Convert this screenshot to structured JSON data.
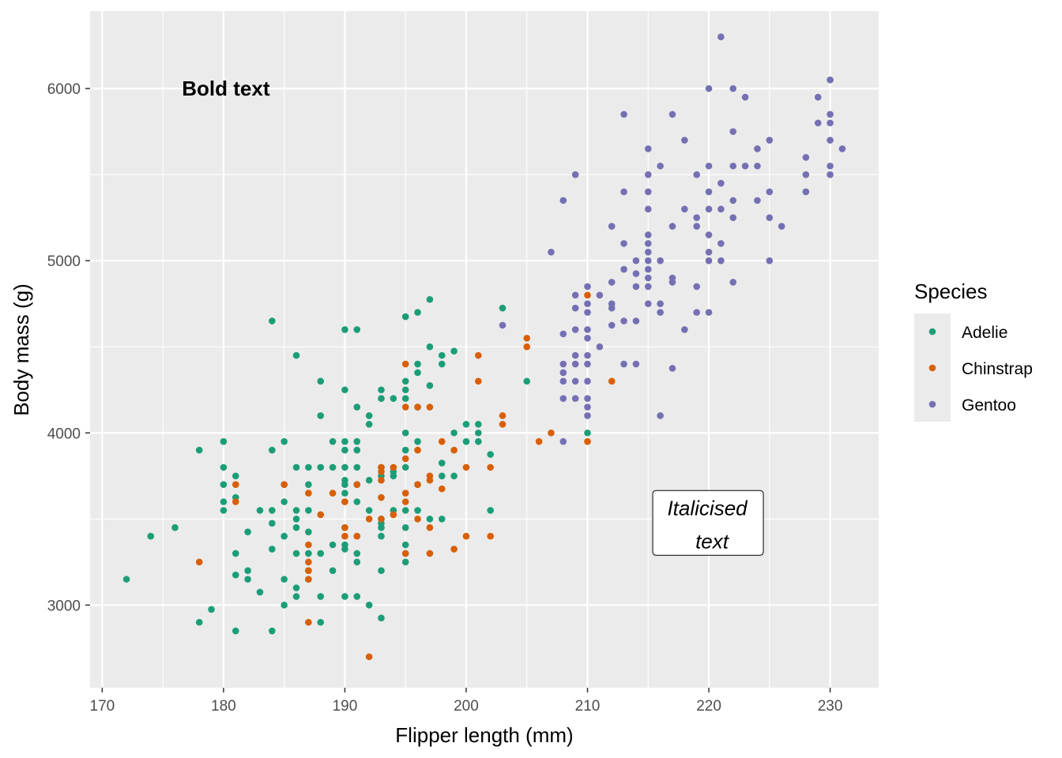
{
  "chart_data": {
    "type": "scatter",
    "xlabel": "Flipper length (mm)",
    "ylabel": "Body mass (g)",
    "xlim": [
      169,
      234
    ],
    "ylim": [
      2520,
      6450
    ],
    "x_ticks": [
      170,
      180,
      190,
      200,
      210,
      220,
      230
    ],
    "y_ticks": [
      3000,
      4000,
      5000,
      6000
    ],
    "grid": true,
    "legend": {
      "title": "Species",
      "position": "right"
    },
    "annotations": [
      {
        "text": "Bold text",
        "style": "bold",
        "x": 180,
        "y": 6000
      },
      {
        "text": "Italicised\ntext",
        "style": "italic-label",
        "x": 220,
        "y": 3500
      }
    ],
    "series": [
      {
        "name": "Adelie",
        "color": "#1B9E77",
        "points": [
          [
            172,
            3150
          ],
          [
            174,
            3400
          ],
          [
            176,
            3450
          ],
          [
            178,
            3900
          ],
          [
            178,
            2900
          ],
          [
            179,
            2975
          ],
          [
            180,
            3950
          ],
          [
            180,
            3800
          ],
          [
            180,
            3700
          ],
          [
            180,
            3600
          ],
          [
            180,
            3550
          ],
          [
            181,
            3750
          ],
          [
            181,
            3625
          ],
          [
            181,
            3300
          ],
          [
            181,
            3175
          ],
          [
            181,
            2850
          ],
          [
            182,
            3425
          ],
          [
            182,
            3200
          ],
          [
            182,
            3150
          ],
          [
            183,
            3550
          ],
          [
            183,
            3075
          ],
          [
            184,
            4650
          ],
          [
            184,
            3900
          ],
          [
            184,
            3550
          ],
          [
            184,
            3475
          ],
          [
            184,
            3325
          ],
          [
            184,
            2850
          ],
          [
            185,
            3950
          ],
          [
            185,
            3700
          ],
          [
            185,
            3600
          ],
          [
            185,
            3400
          ],
          [
            185,
            3150
          ],
          [
            185,
            3000
          ],
          [
            186,
            4450
          ],
          [
            186,
            3800
          ],
          [
            186,
            3550
          ],
          [
            186,
            3500
          ],
          [
            186,
            3450
          ],
          [
            186,
            3300
          ],
          [
            186,
            3100
          ],
          [
            186,
            3050
          ],
          [
            187,
            3800
          ],
          [
            187,
            3700
          ],
          [
            187,
            3550
          ],
          [
            187,
            3425
          ],
          [
            187,
            3300
          ],
          [
            187,
            3200
          ],
          [
            187,
            3150
          ],
          [
            188,
            4300
          ],
          [
            188,
            4100
          ],
          [
            188,
            3800
          ],
          [
            188,
            3300
          ],
          [
            188,
            3050
          ],
          [
            188,
            2900
          ],
          [
            189,
            3950
          ],
          [
            189,
            3800
          ],
          [
            189,
            3350
          ],
          [
            189,
            3200
          ],
          [
            190,
            4600
          ],
          [
            190,
            4250
          ],
          [
            190,
            3950
          ],
          [
            190,
            3900
          ],
          [
            190,
            3800
          ],
          [
            190,
            3725
          ],
          [
            190,
            3700
          ],
          [
            190,
            3650
          ],
          [
            190,
            3600
          ],
          [
            190,
            3450
          ],
          [
            190,
            3350
          ],
          [
            190,
            3325
          ],
          [
            190,
            3050
          ],
          [
            191,
            4600
          ],
          [
            191,
            4150
          ],
          [
            191,
            3950
          ],
          [
            191,
            3900
          ],
          [
            191,
            3800
          ],
          [
            191,
            3700
          ],
          [
            191,
            3600
          ],
          [
            191,
            3300
          ],
          [
            191,
            3250
          ],
          [
            191,
            3050
          ],
          [
            192,
            4100
          ],
          [
            192,
            4050
          ],
          [
            192,
            3725
          ],
          [
            192,
            3550
          ],
          [
            192,
            3000
          ],
          [
            193,
            4250
          ],
          [
            193,
            4200
          ],
          [
            193,
            3800
          ],
          [
            193,
            3750
          ],
          [
            193,
            3500
          ],
          [
            193,
            3475
          ],
          [
            193,
            3450
          ],
          [
            193,
            3400
          ],
          [
            193,
            3200
          ],
          [
            193,
            2925
          ],
          [
            194,
            4200
          ],
          [
            194,
            3775
          ],
          [
            194,
            3750
          ],
          [
            194,
            3550
          ],
          [
            195,
            4675
          ],
          [
            195,
            4300
          ],
          [
            195,
            4250
          ],
          [
            195,
            4200
          ],
          [
            195,
            4000
          ],
          [
            195,
            3900
          ],
          [
            195,
            3800
          ],
          [
            195,
            3550
          ],
          [
            195,
            3450
          ],
          [
            195,
            3350
          ],
          [
            195,
            3300
          ],
          [
            195,
            3250
          ],
          [
            196,
            4700
          ],
          [
            196,
            4400
          ],
          [
            196,
            4350
          ],
          [
            196,
            4150
          ],
          [
            196,
            3950
          ],
          [
            196,
            3700
          ],
          [
            196,
            3550
          ],
          [
            197,
            4775
          ],
          [
            197,
            4500
          ],
          [
            197,
            4275
          ],
          [
            197,
            3500
          ],
          [
            198,
            4450
          ],
          [
            198,
            4400
          ],
          [
            198,
            3825
          ],
          [
            198,
            3750
          ],
          [
            198,
            3500
          ],
          [
            199,
            4475
          ],
          [
            199,
            4000
          ],
          [
            199,
            3750
          ],
          [
            200,
            4050
          ],
          [
            200,
            3950
          ],
          [
            201,
            4050
          ],
          [
            201,
            4000
          ],
          [
            201,
            3950
          ],
          [
            202,
            3875
          ],
          [
            202,
            3550
          ],
          [
            203,
            4725
          ],
          [
            205,
            4300
          ],
          [
            210,
            4000
          ]
        ]
      },
      {
        "name": "Chinstrap",
        "color": "#D95F02",
        "points": [
          [
            178,
            3250
          ],
          [
            181,
            3700
          ],
          [
            181,
            3600
          ],
          [
            185,
            3700
          ],
          [
            187,
            3650
          ],
          [
            187,
            3350
          ],
          [
            187,
            3250
          ],
          [
            187,
            3200
          ],
          [
            187,
            3150
          ],
          [
            187,
            2900
          ],
          [
            188,
            3525
          ],
          [
            189,
            3650
          ],
          [
            190,
            3450
          ],
          [
            190,
            3400
          ],
          [
            190,
            3600
          ],
          [
            191,
            3700
          ],
          [
            191,
            3400
          ],
          [
            192,
            3500
          ],
          [
            192,
            2700
          ],
          [
            193,
            3800
          ],
          [
            193,
            3775
          ],
          [
            193,
            3725
          ],
          [
            193,
            3625
          ],
          [
            193,
            3500
          ],
          [
            194,
            3800
          ],
          [
            194,
            3525
          ],
          [
            195,
            4400
          ],
          [
            195,
            4150
          ],
          [
            195,
            3850
          ],
          [
            195,
            3650
          ],
          [
            195,
            3600
          ],
          [
            195,
            3300
          ],
          [
            196,
            4150
          ],
          [
            196,
            3900
          ],
          [
            196,
            3700
          ],
          [
            196,
            3500
          ],
          [
            197,
            4150
          ],
          [
            197,
            3750
          ],
          [
            197,
            3725
          ],
          [
            197,
            3450
          ],
          [
            197,
            3300
          ],
          [
            198,
            3950
          ],
          [
            198,
            3675
          ],
          [
            199,
            3900
          ],
          [
            199,
            3325
          ],
          [
            200,
            3800
          ],
          [
            200,
            3400
          ],
          [
            201,
            4450
          ],
          [
            201,
            4300
          ],
          [
            202,
            3800
          ],
          [
            202,
            3400
          ],
          [
            203,
            4100
          ],
          [
            203,
            4050
          ],
          [
            205,
            4550
          ],
          [
            205,
            4500
          ],
          [
            206,
            3950
          ],
          [
            207,
            4000
          ],
          [
            210,
            4800
          ],
          [
            210,
            3950
          ],
          [
            212,
            4300
          ]
        ]
      },
      {
        "name": "Gentoo",
        "color": "#7570B3",
        "points": [
          [
            203,
            4625
          ],
          [
            207,
            5050
          ],
          [
            208,
            5350
          ],
          [
            208,
            4575
          ],
          [
            208,
            4400
          ],
          [
            208,
            4350
          ],
          [
            208,
            4300
          ],
          [
            208,
            4200
          ],
          [
            208,
            3950
          ],
          [
            209,
            5500
          ],
          [
            209,
            4800
          ],
          [
            209,
            4725
          ],
          [
            209,
            4600
          ],
          [
            209,
            4450
          ],
          [
            209,
            4400
          ],
          [
            209,
            4300
          ],
          [
            209,
            4200
          ],
          [
            210,
            4850
          ],
          [
            210,
            4750
          ],
          [
            210,
            4700
          ],
          [
            210,
            4600
          ],
          [
            210,
            4550
          ],
          [
            210,
            4450
          ],
          [
            210,
            4400
          ],
          [
            210,
            4300
          ],
          [
            210,
            4200
          ],
          [
            210,
            4150
          ],
          [
            210,
            4100
          ],
          [
            211,
            4800
          ],
          [
            211,
            4500
          ],
          [
            212,
            5200
          ],
          [
            212,
            4875
          ],
          [
            212,
            4750
          ],
          [
            212,
            4725
          ],
          [
            212,
            4625
          ],
          [
            213,
            5850
          ],
          [
            213,
            5400
          ],
          [
            213,
            5100
          ],
          [
            213,
            4950
          ],
          [
            213,
            4650
          ],
          [
            213,
            4400
          ],
          [
            214,
            5000
          ],
          [
            214,
            4925
          ],
          [
            214,
            4850
          ],
          [
            214,
            4650
          ],
          [
            214,
            4400
          ],
          [
            215,
            5650
          ],
          [
            215,
            5500
          ],
          [
            215,
            5400
          ],
          [
            215,
            5300
          ],
          [
            215,
            5150
          ],
          [
            215,
            5100
          ],
          [
            215,
            5050
          ],
          [
            215,
            5000
          ],
          [
            215,
            4950
          ],
          [
            215,
            4900
          ],
          [
            215,
            4850
          ],
          [
            215,
            4750
          ],
          [
            216,
            5550
          ],
          [
            216,
            5000
          ],
          [
            216,
            4750
          ],
          [
            216,
            4700
          ],
          [
            216,
            4100
          ],
          [
            217,
            5850
          ],
          [
            217,
            5200
          ],
          [
            217,
            4900
          ],
          [
            217,
            4875
          ],
          [
            217,
            4375
          ],
          [
            218,
            5700
          ],
          [
            218,
            5300
          ],
          [
            218,
            4600
          ],
          [
            219,
            5500
          ],
          [
            219,
            5250
          ],
          [
            219,
            5200
          ],
          [
            219,
            4850
          ],
          [
            219,
            4700
          ],
          [
            220,
            6000
          ],
          [
            220,
            5550
          ],
          [
            220,
            5400
          ],
          [
            220,
            5300
          ],
          [
            220,
            5150
          ],
          [
            220,
            5050
          ],
          [
            220,
            5000
          ],
          [
            220,
            4700
          ],
          [
            221,
            6300
          ],
          [
            221,
            5450
          ],
          [
            221,
            5300
          ],
          [
            221,
            5100
          ],
          [
            221,
            5000
          ],
          [
            222,
            6000
          ],
          [
            222,
            5750
          ],
          [
            222,
            5550
          ],
          [
            222,
            5350
          ],
          [
            222,
            5250
          ],
          [
            222,
            4875
          ],
          [
            223,
            5950
          ],
          [
            223,
            5550
          ],
          [
            224,
            5650
          ],
          [
            224,
            5550
          ],
          [
            224,
            5350
          ],
          [
            225,
            5700
          ],
          [
            225,
            5400
          ],
          [
            225,
            5250
          ],
          [
            225,
            5000
          ],
          [
            226,
            5200
          ],
          [
            228,
            5600
          ],
          [
            228,
            5500
          ],
          [
            228,
            5400
          ],
          [
            229,
            5950
          ],
          [
            229,
            5800
          ],
          [
            230,
            6050
          ],
          [
            230,
            5850
          ],
          [
            230,
            5800
          ],
          [
            230,
            5700
          ],
          [
            230,
            5550
          ],
          [
            230,
            5500
          ],
          [
            231,
            5650
          ]
        ]
      }
    ]
  }
}
